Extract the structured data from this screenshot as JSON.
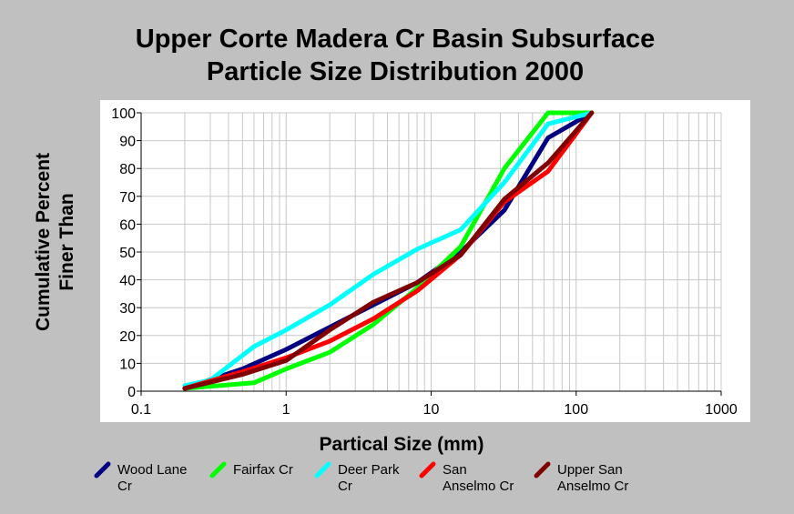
{
  "chart_data": {
    "type": "line",
    "title_line1": "Upper Corte Madera Cr Basin Subsurface",
    "title_line2": "Particle Size Distribution 2000",
    "xlabel": "Partical Size (mm)",
    "ylabel_line1": "Cumulative Percent",
    "ylabel_line2": "Finer Than",
    "xscale": "log",
    "xlim": [
      0.1,
      1000
    ],
    "ylim": [
      0,
      100
    ],
    "x_ticks": [
      "0.1",
      "1",
      "10",
      "100",
      "1000"
    ],
    "y_ticks": [
      "0",
      "10",
      "20",
      "30",
      "40",
      "50",
      "60",
      "70",
      "80",
      "90",
      "100"
    ],
    "grid": true,
    "legend_position": "bottom",
    "series": [
      {
        "name": "Wood Lane Cr",
        "legend_line1": "Wood Lane",
        "legend_line2": "Cr",
        "color": "#000080",
        "x": [
          0.2,
          0.5,
          1,
          2,
          4,
          8,
          16,
          32,
          64,
          128
        ],
        "y": [
          1,
          8,
          15,
          23,
          31,
          39,
          50,
          65,
          91,
          100
        ]
      },
      {
        "name": "Fairfax Cr",
        "legend_line1": "Fairfax Cr",
        "legend_line2": "",
        "color": "#00ff00",
        "x": [
          0.2,
          0.6,
          1,
          2,
          4,
          8,
          16,
          32,
          64,
          128
        ],
        "y": [
          1,
          3,
          8,
          14,
          24,
          37,
          52,
          80,
          100,
          100
        ]
      },
      {
        "name": "Deer Park Cr",
        "legend_line1": "Deer Park",
        "legend_line2": "Cr",
        "color": "#00ffff",
        "x": [
          0.2,
          0.3,
          0.6,
          1,
          2,
          4,
          8,
          16,
          32,
          64,
          128
        ],
        "y": [
          2,
          4,
          16,
          22,
          31,
          42,
          51,
          58,
          75,
          96,
          100
        ]
      },
      {
        "name": "San Anselmo Cr",
        "legend_line1": "San",
        "legend_line2": "Anselmo Cr",
        "color": "#ff0000",
        "x": [
          0.2,
          0.5,
          1,
          2,
          4,
          8,
          16,
          32,
          64,
          128
        ],
        "y": [
          1,
          7,
          12,
          18,
          26,
          36,
          49,
          68,
          79,
          100
        ]
      },
      {
        "name": "Upper San Anselmo Cr",
        "legend_line1": "Upper San",
        "legend_line2": "Anselmo Cr",
        "color": "#800000",
        "x": [
          0.2,
          0.5,
          1,
          2,
          4,
          8,
          16,
          32,
          64,
          128
        ],
        "y": [
          1,
          6,
          11,
          22,
          32,
          39,
          49,
          69,
          82,
          100
        ]
      }
    ]
  }
}
